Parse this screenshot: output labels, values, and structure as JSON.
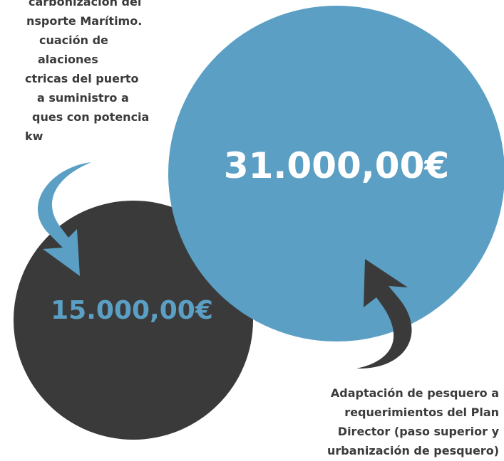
{
  "top_note": {
    "lines": [
      "carbonización del",
      "nsporte Marítimo.",
      "cuación de",
      "alaciones",
      "ctricas del puerto",
      "a suministro a",
      "ques con potencia",
      "kw"
    ]
  },
  "small_circle": {
    "amount": "15.000,00€"
  },
  "large_circle": {
    "amount": "31.000,00€"
  },
  "bottom_note": {
    "lines": [
      "Adaptación de pesquero a",
      "requerimientos del Plan",
      "Director (paso superior y",
      "urbanización de pesquero)"
    ]
  }
}
